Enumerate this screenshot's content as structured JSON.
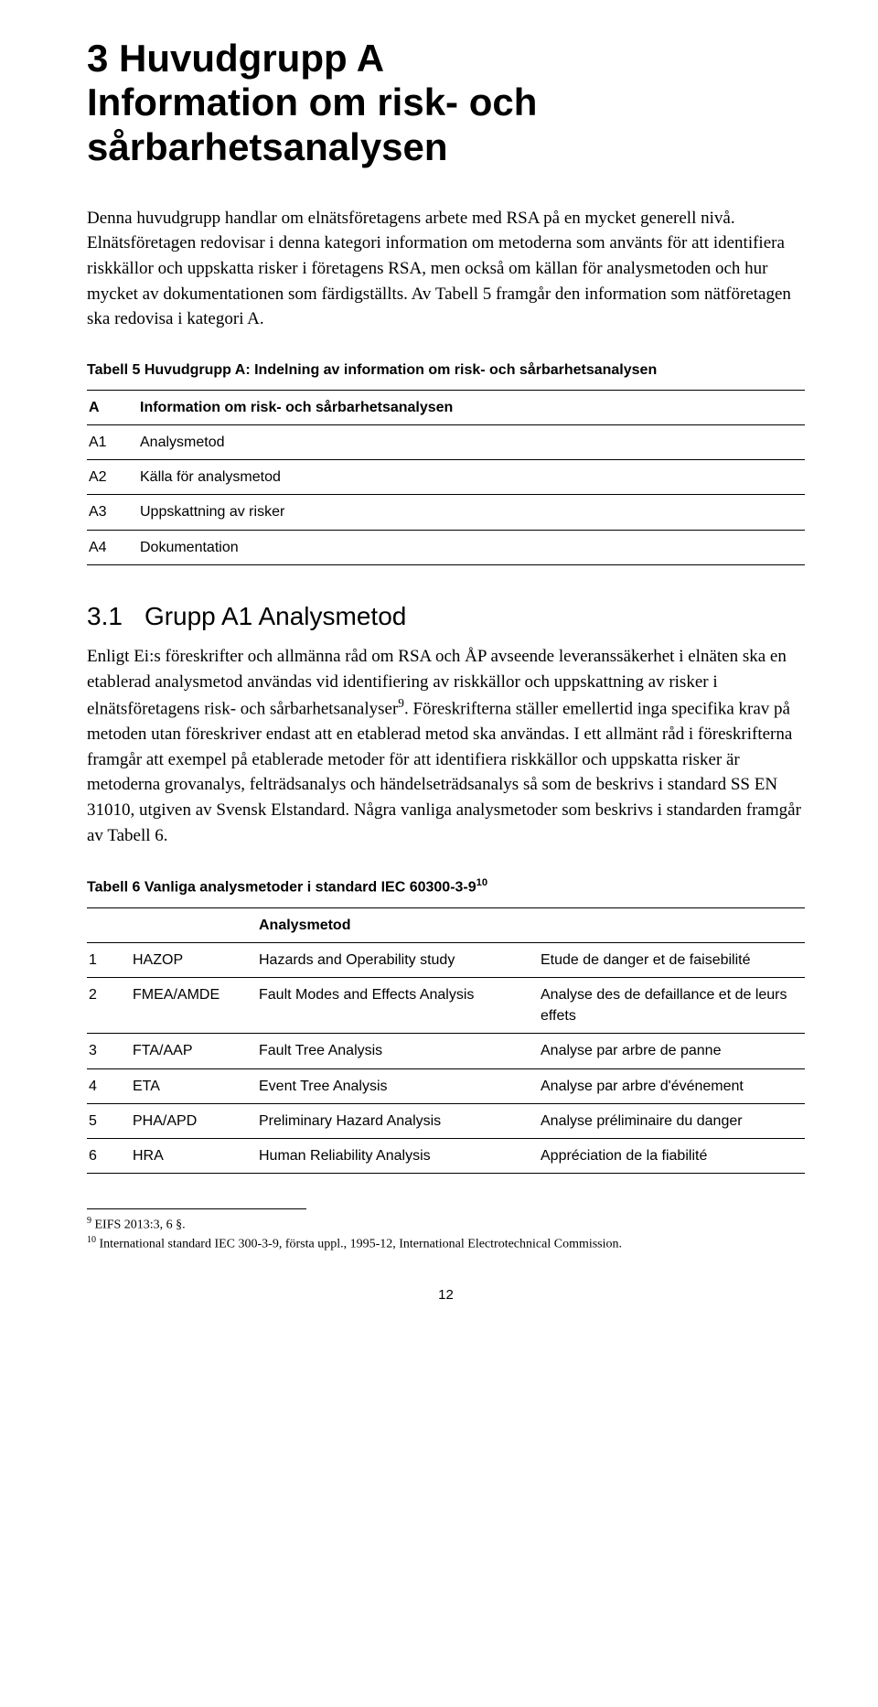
{
  "h1_line1": "3  Huvudgrupp A",
  "h1_line2": "Information om risk- och sårbarhetsanalysen",
  "para1": "Denna huvudgrupp handlar om elnätsföretagens arbete med RSA på en mycket generell nivå. Elnätsföretagen redovisar i denna kategori information om metoderna som använts för att identifiera riskkällor och uppskatta risker i företagens RSA, men också om källan för analysmetoden och hur mycket av dokumentationen som färdigställts. Av Tabell 5 framgår den information som nätföretagen ska redovisa i kategori A.",
  "tbl5_caption": "Tabell 5 Huvudgrupp A: Indelning av information om risk- och sårbarhetsanalysen",
  "tbl5": {
    "rows": [
      {
        "code": "A",
        "label": "Information om risk- och sårbarhetsanalysen",
        "bold": true
      },
      {
        "code": "A1",
        "label": "Analysmetod"
      },
      {
        "code": "A2",
        "label": "Källa för analysmetod"
      },
      {
        "code": "A3",
        "label": "Uppskattning av risker"
      },
      {
        "code": "A4",
        "label": "Dokumentation"
      }
    ]
  },
  "h2_num": "3.1",
  "h2_text": "Grupp A1 Analysmetod",
  "para2_a": "Enligt Ei:s föreskrifter och allmänna råd om RSA och ÅP avseende leveranssäkerhet i elnäten ska en etablerad analysmetod användas vid identifiering av riskkällor och uppskattning av risker i elnätsföretagens risk- och sårbarhetsanalyser",
  "para2_b": ". Föreskrifterna ställer emellertid inga specifika krav på metoden utan föreskriver endast att en etablerad metod ska användas. I ett allmänt råd i föreskrifterna framgår att exempel på etablerade metoder för att identifiera riskkällor och uppskatta risker är metoderna grovanalys, felträdsanalys och händelseträdsanalys så som de beskrivs i standard SS EN 31010, utgiven av Svensk Elstandard. Några vanliga analysmetoder som beskrivs i standarden framgår av Tabell 6.",
  "fn9_mark": "9",
  "tbl6_caption_a": "Tabell 6 Vanliga analysmetoder i standard IEC 60300-3-9",
  "fn10_mark": "10",
  "tbl6": {
    "header_col3": "Analysmetod",
    "rows": [
      {
        "n": "1",
        "abbr": "HAZOP",
        "en": "Hazards and Operability study",
        "fr": "Etude de danger et de faisebilité"
      },
      {
        "n": "2",
        "abbr": "FMEA/AMDE",
        "en": "Fault Modes and Effects Analysis",
        "fr": "Analyse des de defaillance et de leurs effets"
      },
      {
        "n": "3",
        "abbr": "FTA/AAP",
        "en": "Fault Tree Analysis",
        "fr": "Analyse par arbre de panne"
      },
      {
        "n": "4",
        "abbr": "ETA",
        "en": "Event Tree Analysis",
        "fr": "Analyse par arbre d'événement"
      },
      {
        "n": "5",
        "abbr": "PHA/APD",
        "en": "Preliminary Hazard Analysis",
        "fr": "Analyse préliminaire du danger"
      },
      {
        "n": "6",
        "abbr": "HRA",
        "en": "Human Reliability Analysis",
        "fr": "Appréciation de la fiabilité"
      }
    ]
  },
  "footnote9": " EIFS 2013:3, 6 §.",
  "footnote10": " International standard IEC 300-3-9, första uppl., 1995-12, International Electrotechnical Commission.",
  "pagenum": "12"
}
